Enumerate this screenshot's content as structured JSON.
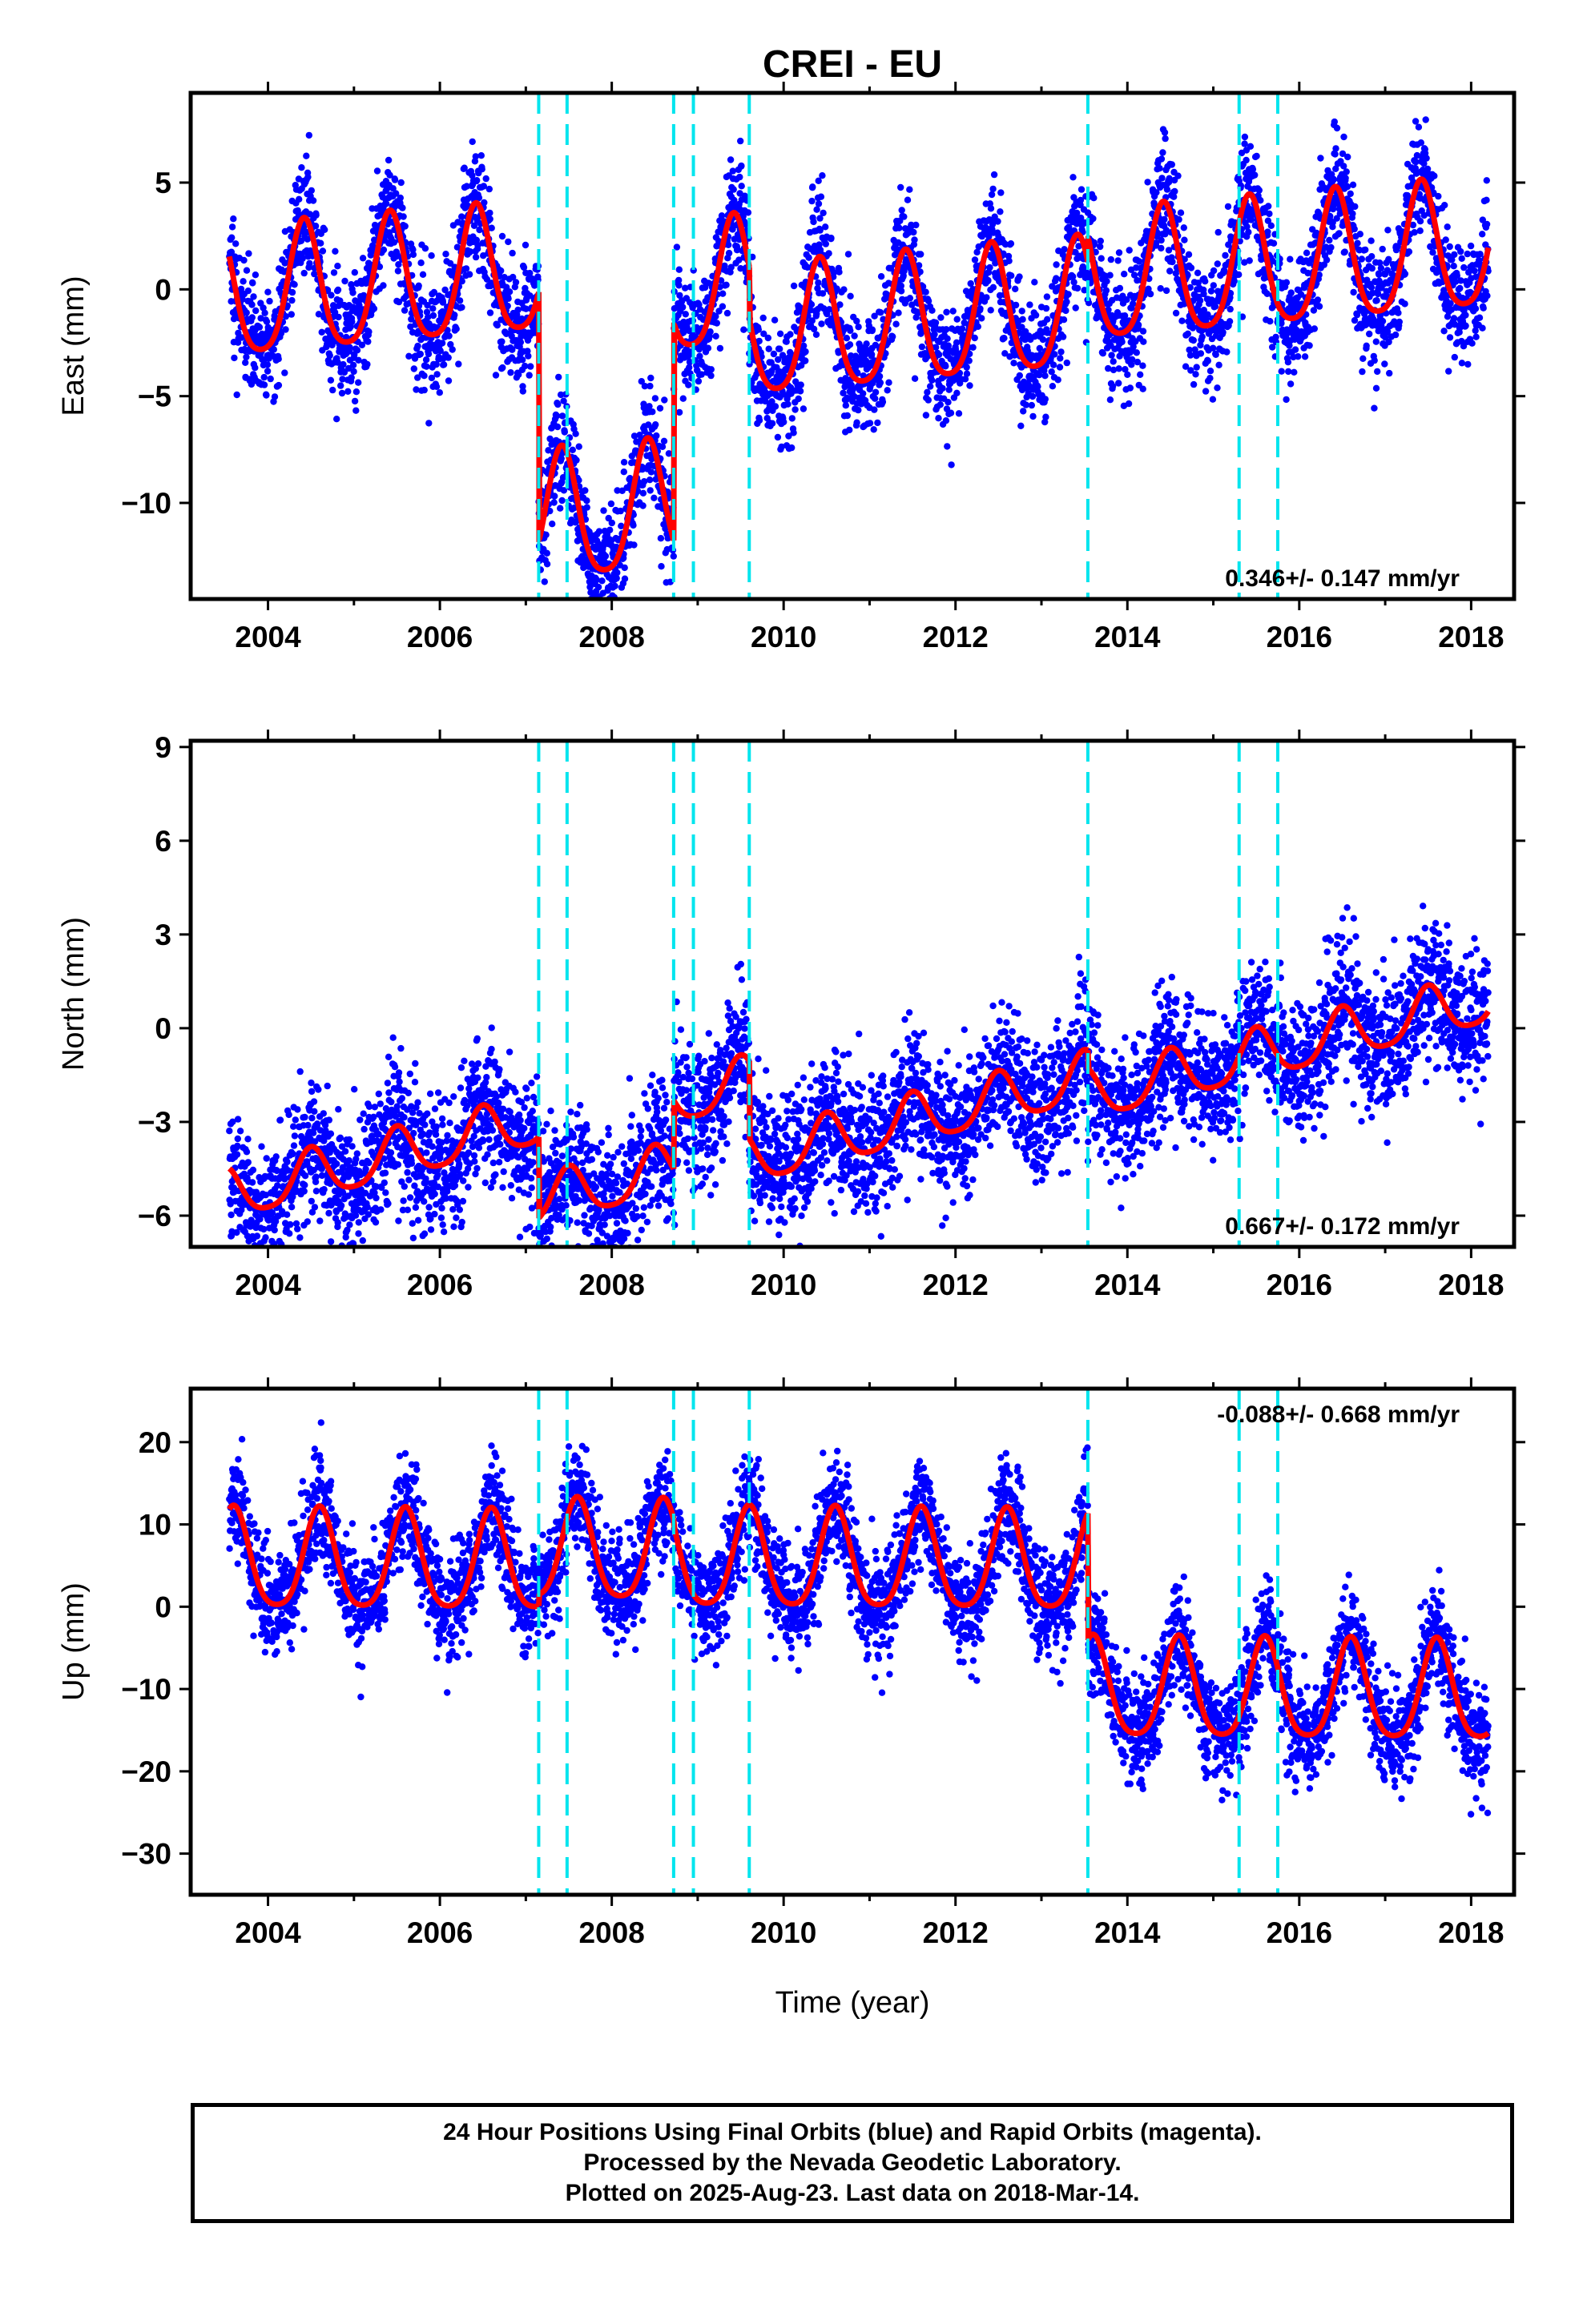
{
  "figure": {
    "title": "CREI - EU",
    "xlabel": "Time (year)",
    "footer": [
      "24 Hour Positions Using Final Orbits (blue) and Rapid Orbits (magenta).",
      "Processed by the Nevada Geodetic Laboratory.",
      "Plotted on 2025-Aug-23. Last data on 2018-Mar-14."
    ]
  },
  "colors": {
    "final_orbit_points": "#0000ff",
    "rapid_orbit_points": "#ff00ff",
    "model_fit": "#ff0000",
    "step_markers": "#00e5ee"
  },
  "chart_data": [
    {
      "type": "scatter",
      "component": "east",
      "ylabel": "East (mm)",
      "rate_label": "0.346+/- 0.147 mm/yr",
      "rate_position": "bottom-right",
      "xlim": [
        2003.1,
        2018.5
      ],
      "ylim": [
        -14.5,
        9.2
      ],
      "xticks": [
        2004,
        2006,
        2008,
        2010,
        2012,
        2014,
        2016,
        2018
      ],
      "yticks": [
        -10,
        -5,
        0,
        5
      ],
      "step_epochs": [
        2007.15,
        2007.48,
        2008.72,
        2008.95,
        2009.6,
        2013.54,
        2015.3,
        2015.75
      ],
      "x_start": 2003.55,
      "x_end": 2018.2,
      "rate_mm_per_yr": 0.346,
      "annual_amplitude_mm": 3.0,
      "annual_peak_fraction": 0.42,
      "point_scatter_mm": 1.4,
      "segments": [
        {
          "x_start": 2003.55,
          "x_end": 2007.15,
          "offset_mm": 2.1
        },
        {
          "x_start": 2007.15,
          "x_end": 2008.72,
          "offset_mm": -9.6
        },
        {
          "x_start": 2008.72,
          "x_end": 2009.6,
          "offset_mm": 0.6
        },
        {
          "x_start": 2009.6,
          "x_end": 2013.54,
          "offset_mm": -1.8
        },
        {
          "x_start": 2013.54,
          "x_end": 2018.2,
          "offset_mm": -0.6
        }
      ]
    },
    {
      "type": "scatter",
      "component": "north",
      "ylabel": "North (mm)",
      "rate_label": "0.667+/- 0.172 mm/yr",
      "rate_position": "bottom-right",
      "xlim": [
        2003.1,
        2018.5
      ],
      "ylim": [
        -7.0,
        9.2
      ],
      "xticks": [
        2004,
        2006,
        2008,
        2010,
        2012,
        2014,
        2016,
        2018
      ],
      "yticks": [
        -6,
        -3,
        0,
        3,
        6,
        9
      ],
      "step_epochs": [
        2007.15,
        2007.48,
        2008.72,
        2008.95,
        2009.6,
        2013.54,
        2015.3,
        2015.75
      ],
      "x_start": 2003.55,
      "x_end": 2018.2,
      "rate_mm_per_yr": 0.667,
      "annual_amplitude_mm": 0.8,
      "annual_peak_fraction": 0.5,
      "point_scatter_mm": 1.05,
      "segments": [
        {
          "x_start": 2003.55,
          "x_end": 2007.15,
          "offset_mm": -0.4
        },
        {
          "x_start": 2007.15,
          "x_end": 2008.72,
          "offset_mm": -3.0
        },
        {
          "x_start": 2008.72,
          "x_end": 2009.6,
          "offset_mm": -0.8
        },
        {
          "x_start": 2009.6,
          "x_end": 2013.54,
          "offset_mm": -3.3
        },
        {
          "x_start": 2013.54,
          "x_end": 2018.2,
          "offset_mm": -3.9
        }
      ]
    },
    {
      "type": "scatter",
      "component": "up",
      "ylabel": "Up (mm)",
      "rate_label": "-0.088+/- 0.668 mm/yr",
      "rate_position": "top-right",
      "xlim": [
        2003.1,
        2018.5
      ],
      "ylim": [
        -35.0,
        26.5
      ],
      "xticks": [
        2004,
        2006,
        2008,
        2010,
        2012,
        2014,
        2016,
        2018
      ],
      "yticks": [
        -30,
        -20,
        -10,
        0,
        10,
        20
      ],
      "step_epochs": [
        2007.15,
        2007.48,
        2008.72,
        2008.95,
        2009.6,
        2013.54,
        2015.3,
        2015.75
      ],
      "x_start": 2003.55,
      "x_end": 2018.2,
      "rate_mm_per_yr": -0.088,
      "annual_amplitude_mm": 6.0,
      "annual_peak_fraction": 0.6,
      "point_scatter_mm": 3.2,
      "segments": [
        {
          "x_start": 2003.55,
          "x_end": 2007.15,
          "offset_mm": 4.6
        },
        {
          "x_start": 2007.15,
          "x_end": 2008.72,
          "offset_mm": 6.0
        },
        {
          "x_start": 2008.72,
          "x_end": 2009.6,
          "offset_mm": 5.2
        },
        {
          "x_start": 2009.6,
          "x_end": 2013.54,
          "offset_mm": 5.2
        },
        {
          "x_start": 2013.54,
          "x_end": 2018.2,
          "offset_mm": -10.2
        }
      ]
    }
  ]
}
